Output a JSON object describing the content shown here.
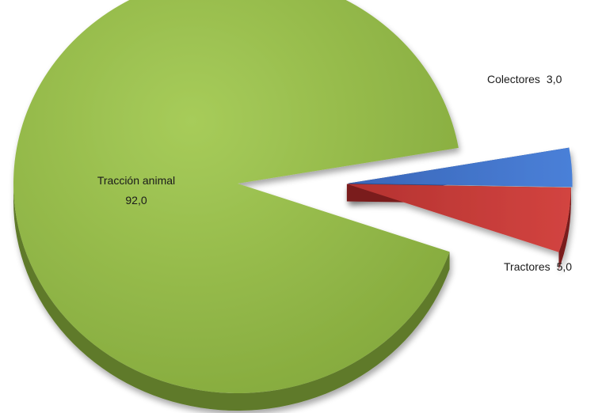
{
  "chart_data": {
    "type": "pie",
    "title": "",
    "slices": [
      {
        "name": "Tracción animal",
        "value": 92.0,
        "value_label": "92,0",
        "color": "#94b84a",
        "dark": "#5f7a2a",
        "exploded": false
      },
      {
        "name": "Colectores",
        "value": 3.0,
        "value_label": "3,0",
        "color": "#3d6fc4",
        "dark": "#24467f",
        "exploded": true
      },
      {
        "name": "Tractores",
        "value": 5.0,
        "value_label": "5,0",
        "color": "#c63a36",
        "dark": "#7a1c1c",
        "exploded": true
      }
    ],
    "style": "3d-exploded"
  }
}
